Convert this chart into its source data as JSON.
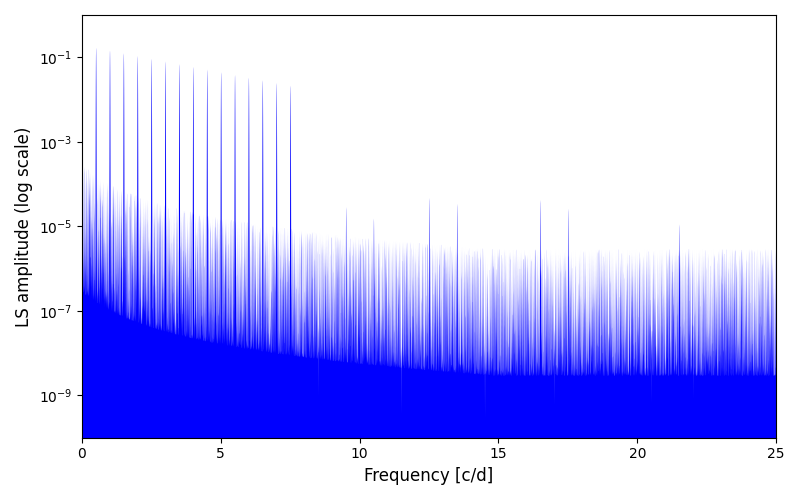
{
  "title": "",
  "xlabel": "Frequency [c/d]",
  "ylabel": "LS amplitude (log scale)",
  "xlim": [
    0,
    25
  ],
  "ylim_low": 1e-10,
  "ylim_high": 1.0,
  "line_color": "#0000ff",
  "background_color": "#ffffff",
  "figsize": [
    8.0,
    5.0
  ],
  "dpi": 100,
  "freq_max": 25.0,
  "n_points": 10000,
  "seed": 12345
}
